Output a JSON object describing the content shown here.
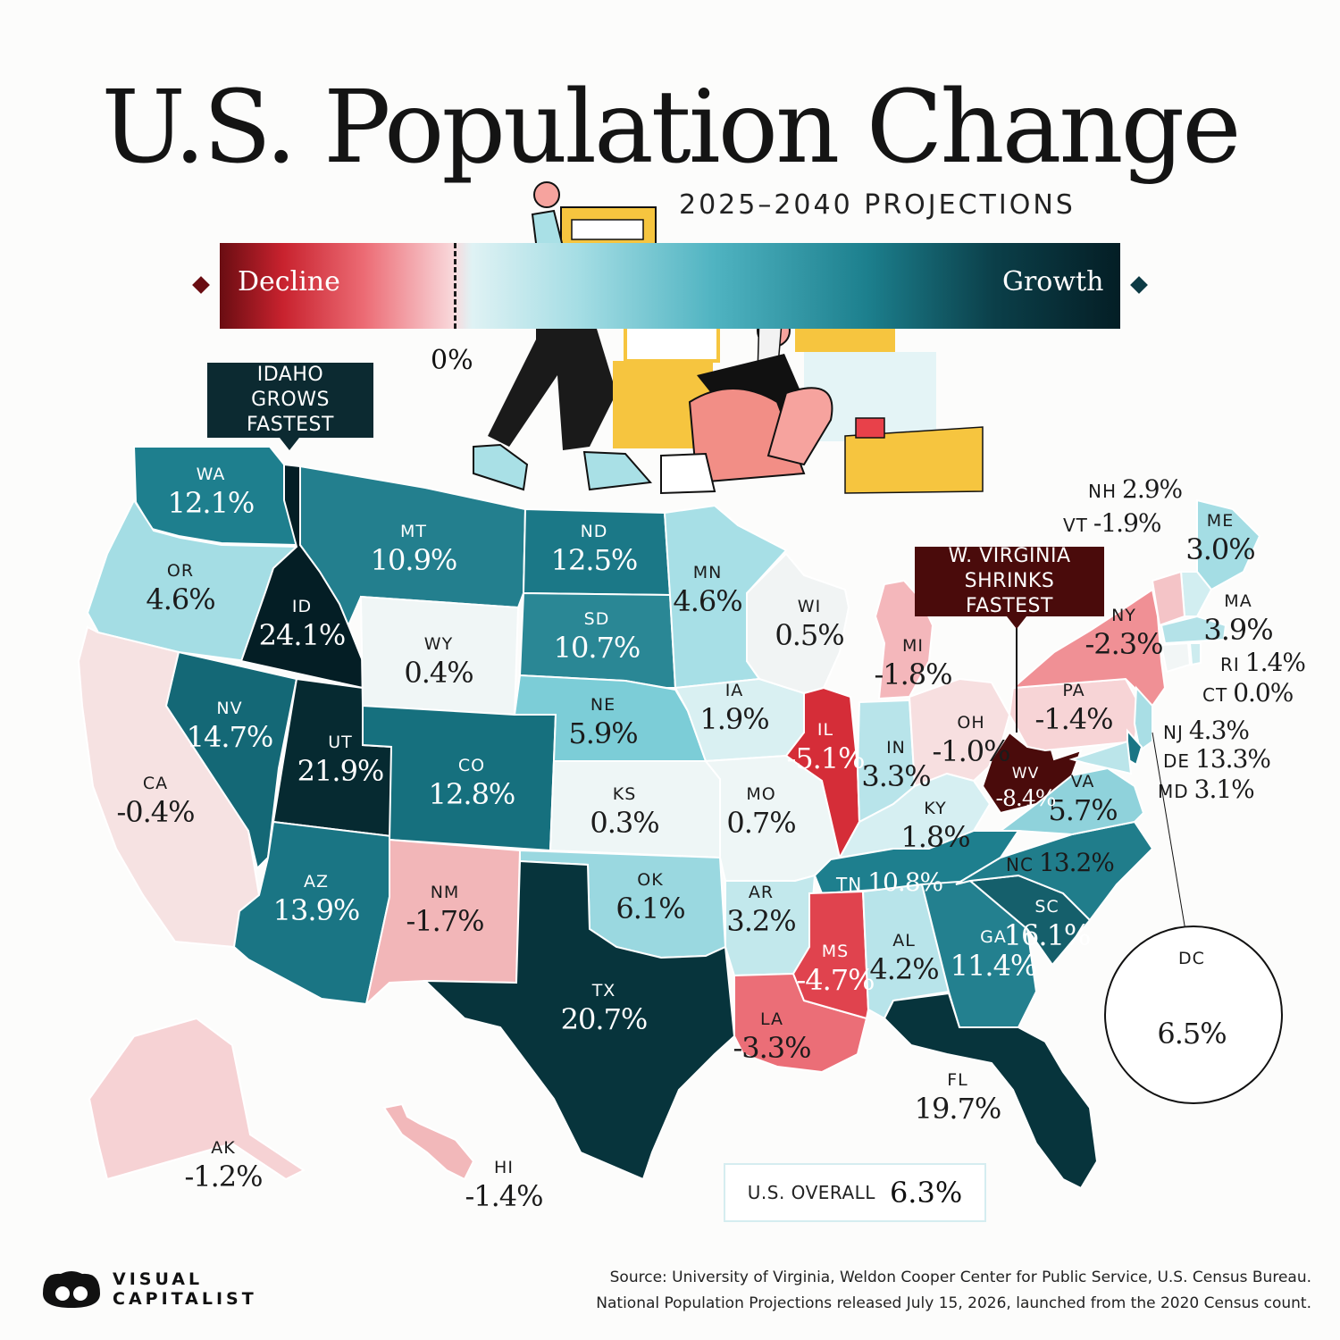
{
  "title": "U.S. Population Change",
  "subtitle": "2025–2040 PROJECTIONS",
  "legend": {
    "decline_label": "Decline",
    "growth_label": "Growth",
    "zero_label": "0%",
    "decline_color": "#6a0d12",
    "growth_color": "#041e25"
  },
  "callouts": {
    "fastest_growth": "IDAHO GROWS FASTEST",
    "fastest_shrink": "W. VIRGINIA SHRINKS FASTEST"
  },
  "states": [
    {
      "abbr": "WA",
      "value": "12.1%"
    },
    {
      "abbr": "OR",
      "value": "4.6%"
    },
    {
      "abbr": "CA",
      "value": "-0.4%"
    },
    {
      "abbr": "ID",
      "value": "24.1%"
    },
    {
      "abbr": "NV",
      "value": "14.7%"
    },
    {
      "abbr": "UT",
      "value": "21.9%"
    },
    {
      "abbr": "AZ",
      "value": "13.9%"
    },
    {
      "abbr": "MT",
      "value": "10.9%"
    },
    {
      "abbr": "WY",
      "value": "0.4%"
    },
    {
      "abbr": "CO",
      "value": "12.8%"
    },
    {
      "abbr": "NM",
      "value": "-1.7%"
    },
    {
      "abbr": "ND",
      "value": "12.5%"
    },
    {
      "abbr": "SD",
      "value": "10.7%"
    },
    {
      "abbr": "NE",
      "value": "5.9%"
    },
    {
      "abbr": "KS",
      "value": "0.3%"
    },
    {
      "abbr": "OK",
      "value": "6.1%"
    },
    {
      "abbr": "TX",
      "value": "20.7%"
    },
    {
      "abbr": "MN",
      "value": "4.6%"
    },
    {
      "abbr": "IA",
      "value": "1.9%"
    },
    {
      "abbr": "MO",
      "value": "0.7%"
    },
    {
      "abbr": "AR",
      "value": "3.2%"
    },
    {
      "abbr": "LA",
      "value": "-3.3%"
    },
    {
      "abbr": "WI",
      "value": "0.5%"
    },
    {
      "abbr": "IL",
      "value": "-5.1%"
    },
    {
      "abbr": "MI",
      "value": "-1.8%"
    },
    {
      "abbr": "IN",
      "value": "3.3%"
    },
    {
      "abbr": "OH",
      "value": "-1.0%"
    },
    {
      "abbr": "KY",
      "value": "1.8%"
    },
    {
      "abbr": "TN",
      "value": "10.8%"
    },
    {
      "abbr": "MS",
      "value": "-4.7%"
    },
    {
      "abbr": "AL",
      "value": "4.2%"
    },
    {
      "abbr": "GA",
      "value": "11.4%"
    },
    {
      "abbr": "FL",
      "value": "19.7%"
    },
    {
      "abbr": "SC",
      "value": "16.1%"
    },
    {
      "abbr": "NC",
      "value": "13.2%"
    },
    {
      "abbr": "VA",
      "value": "5.7%"
    },
    {
      "abbr": "WV",
      "value": "-8.4%"
    },
    {
      "abbr": "PA",
      "value": "-1.4%"
    },
    {
      "abbr": "NY",
      "value": "-2.3%"
    },
    {
      "abbr": "ME",
      "value": "3.0%"
    },
    {
      "abbr": "NH",
      "value": "2.9%"
    },
    {
      "abbr": "VT",
      "value": "-1.9%"
    },
    {
      "abbr": "MA",
      "value": "3.9%"
    },
    {
      "abbr": "RI",
      "value": "1.4%"
    },
    {
      "abbr": "CT",
      "value": "0.0%"
    },
    {
      "abbr": "NJ",
      "value": "4.3%"
    },
    {
      "abbr": "DE",
      "value": "13.3%"
    },
    {
      "abbr": "MD",
      "value": "3.1%"
    },
    {
      "abbr": "AK",
      "value": "-1.2%"
    },
    {
      "abbr": "HI",
      "value": "-1.4%"
    },
    {
      "abbr": "DC",
      "value": "6.5%"
    }
  ],
  "overall": {
    "label": "U.S. OVERALL",
    "value": "6.3%"
  },
  "source_line1": "Source: University of Virginia, Weldon Cooper Center for Public Service, U.S. Census Bureau.",
  "source_line2": "National Population Projections released July 15, 2026, launched from the 2020 Census count.",
  "brand": {
    "line1": "VISUAL",
    "line2": "CAPITALIST"
  }
}
